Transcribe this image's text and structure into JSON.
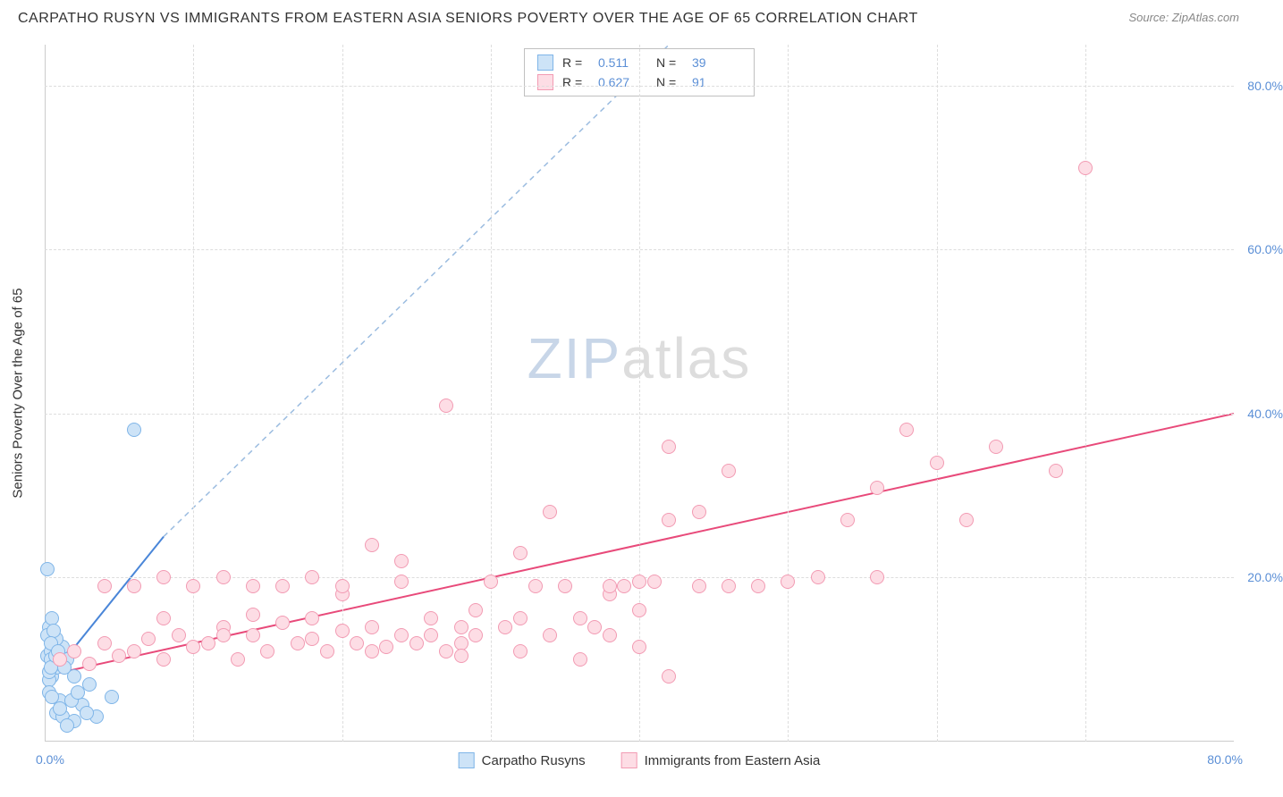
{
  "header": {
    "title": "CARPATHO RUSYN VS IMMIGRANTS FROM EASTERN ASIA SENIORS POVERTY OVER THE AGE OF 65 CORRELATION CHART",
    "source": "Source: ZipAtlas.com"
  },
  "watermark": {
    "part1": "ZIP",
    "part2": "atlas"
  },
  "chart": {
    "type": "scatter",
    "ylabel": "Seniors Poverty Over the Age of 65",
    "background_color": "#ffffff",
    "grid_color": "#dddddd",
    "axis_label_color": "#5b8fd6",
    "xlim": [
      0,
      80
    ],
    "ylim": [
      0,
      85
    ],
    "xtick_labels": {
      "min": "0.0%",
      "max": "80.0%"
    },
    "ytick_values": [
      20,
      40,
      60,
      80
    ],
    "ytick_labels": [
      "20.0%",
      "40.0%",
      "60.0%",
      "80.0%"
    ],
    "xgrid_values": [
      10,
      20,
      30,
      40,
      50,
      60,
      70
    ],
    "point_radius": 8,
    "point_border_width": 1.5,
    "series": [
      {
        "id": "carpatho",
        "label": "Carpatho Rusyns",
        "fill": "#cde3f7",
        "stroke": "#7fb5e8",
        "r_label": "R =",
        "r_value": "0.511",
        "n_label": "N =",
        "n_value": "39",
        "trend": {
          "solid": {
            "x1": 0,
            "y1": 7,
            "x2": 8,
            "y2": 25,
            "color": "#4a86d8",
            "width": 2
          },
          "dashed": {
            "x1": 8,
            "y1": 25,
            "x2": 42,
            "y2": 85,
            "color": "#9bbce0",
            "width": 1.5,
            "dash": "6,5"
          }
        },
        "points": [
          [
            0.2,
            10.5
          ],
          [
            0.3,
            14
          ],
          [
            0.5,
            8
          ],
          [
            0.4,
            11
          ],
          [
            0.8,
            9
          ],
          [
            0.3,
            7.5
          ],
          [
            0.6,
            12
          ],
          [
            1.0,
            9.5
          ],
          [
            0.2,
            13
          ],
          [
            0.4,
            10
          ],
          [
            1.2,
            11.5
          ],
          [
            0.3,
            8.5
          ],
          [
            0.5,
            15
          ],
          [
            0.2,
            21
          ],
          [
            0.8,
            12.5
          ],
          [
            0.4,
            9
          ],
          [
            1.5,
            10
          ],
          [
            0.6,
            13.5
          ],
          [
            2.0,
            8
          ],
          [
            3.0,
            7
          ],
          [
            0.3,
            6
          ],
          [
            1.0,
            5
          ],
          [
            2.5,
            4.5
          ],
          [
            0.8,
            3.5
          ],
          [
            1.2,
            3
          ],
          [
            2.0,
            2.5
          ],
          [
            3.5,
            3
          ],
          [
            1.5,
            2
          ],
          [
            2.8,
            3.5
          ],
          [
            0.5,
            5.5
          ],
          [
            4.5,
            5.5
          ],
          [
            1.0,
            4
          ],
          [
            1.8,
            5
          ],
          [
            6.0,
            38
          ],
          [
            0.4,
            12
          ],
          [
            0.7,
            10.5
          ],
          [
            1.3,
            9
          ],
          [
            0.9,
            11
          ],
          [
            2.2,
            6
          ]
        ]
      },
      {
        "id": "eastern_asia",
        "label": "Immigrants from Eastern Asia",
        "fill": "#fddde5",
        "stroke": "#f29bb3",
        "r_label": "R =",
        "r_value": "0.627",
        "n_label": "N =",
        "n_value": "91",
        "trend": {
          "solid": {
            "x1": 0,
            "y1": 8,
            "x2": 80,
            "y2": 40,
            "color": "#e84a7a",
            "width": 2
          }
        },
        "points": [
          [
            1,
            10
          ],
          [
            2,
            11
          ],
          [
            3,
            9.5
          ],
          [
            4,
            12
          ],
          [
            5,
            10.5
          ],
          [
            6,
            11
          ],
          [
            7,
            12.5
          ],
          [
            8,
            10
          ],
          [
            9,
            13
          ],
          [
            10,
            11.5
          ],
          [
            11,
            12
          ],
          [
            12,
            14
          ],
          [
            13,
            10
          ],
          [
            14,
            13
          ],
          [
            15,
            11
          ],
          [
            16,
            14.5
          ],
          [
            17,
            12
          ],
          [
            18,
            15
          ],
          [
            19,
            11
          ],
          [
            20,
            13.5
          ],
          [
            21,
            12
          ],
          [
            22,
            14
          ],
          [
            23,
            11.5
          ],
          [
            24,
            13
          ],
          [
            25,
            12
          ],
          [
            26,
            15
          ],
          [
            27,
            11
          ],
          [
            28,
            14
          ],
          [
            29,
            13
          ],
          [
            4,
            19
          ],
          [
            6,
            19
          ],
          [
            8,
            15
          ],
          [
            10,
            19
          ],
          [
            12,
            13
          ],
          [
            14,
            15.5
          ],
          [
            16,
            19
          ],
          [
            18,
            12.5
          ],
          [
            20,
            18
          ],
          [
            22,
            11
          ],
          [
            24,
            19.5
          ],
          [
            26,
            13
          ],
          [
            28,
            12
          ],
          [
            30,
            19.5
          ],
          [
            31,
            14
          ],
          [
            32,
            15
          ],
          [
            33,
            19
          ],
          [
            34,
            13
          ],
          [
            35,
            19
          ],
          [
            36,
            15
          ],
          [
            37,
            14
          ],
          [
            38,
            18
          ],
          [
            39,
            19
          ],
          [
            40,
            16
          ],
          [
            41,
            19.5
          ],
          [
            42,
            8
          ],
          [
            36,
            10
          ],
          [
            32,
            11
          ],
          [
            28,
            10.5
          ],
          [
            22,
            24
          ],
          [
            24,
            22
          ],
          [
            27,
            41
          ],
          [
            29,
            16
          ],
          [
            32,
            23
          ],
          [
            34,
            28
          ],
          [
            38,
            19
          ],
          [
            40,
            19.5
          ],
          [
            42,
            27
          ],
          [
            44,
            19
          ],
          [
            44,
            28
          ],
          [
            46,
            19
          ],
          [
            48,
            19
          ],
          [
            42,
            36
          ],
          [
            46,
            33
          ],
          [
            50,
            19.5
          ],
          [
            52,
            20
          ],
          [
            54,
            27
          ],
          [
            56,
            20
          ],
          [
            56,
            31
          ],
          [
            58,
            38
          ],
          [
            60,
            34
          ],
          [
            62,
            27
          ],
          [
            64,
            36
          ],
          [
            68,
            33
          ],
          [
            70,
            70
          ],
          [
            38,
            13
          ],
          [
            40,
            11.5
          ],
          [
            18,
            20
          ],
          [
            20,
            19
          ],
          [
            12,
            20
          ],
          [
            14,
            19
          ],
          [
            8,
            20
          ]
        ]
      }
    ]
  }
}
